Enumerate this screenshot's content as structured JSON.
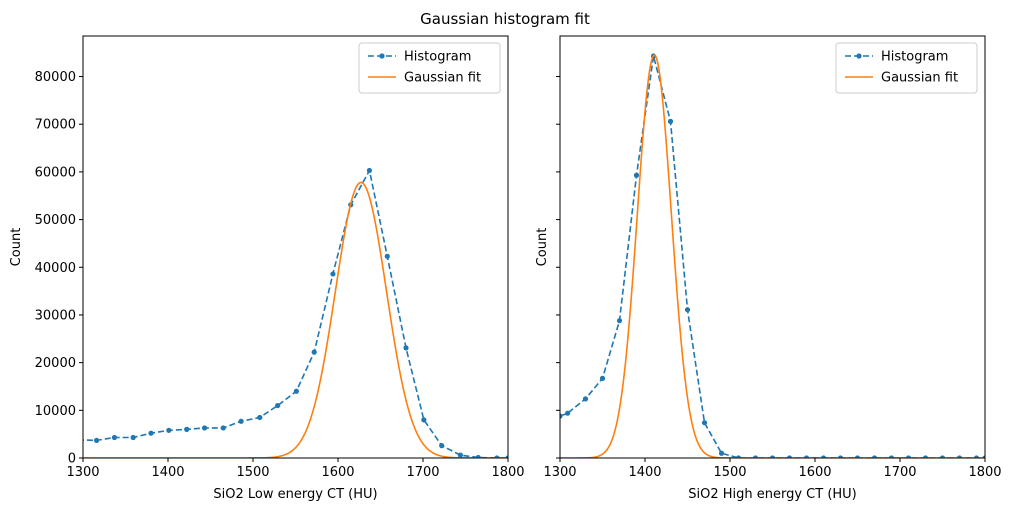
{
  "title": "Gaussian histogram fit",
  "colors": {
    "histogram": "#1f77b4",
    "fit": "#ff7f0e",
    "axes": "#000000"
  },
  "chart_data": [
    {
      "type": "line",
      "xlabel": "SiO2 Low energy CT (HU)",
      "ylabel": "Count",
      "xlim": [
        1300,
        1800
      ],
      "ylim": [
        0,
        88500
      ],
      "xticks": [
        1300,
        1400,
        1500,
        1600,
        1700,
        1800
      ],
      "yticks": [
        0,
        10000,
        20000,
        30000,
        40000,
        50000,
        60000,
        70000,
        80000
      ],
      "legend": {
        "position": "top-right",
        "entries": [
          "Histogram",
          "Gaussian fit"
        ]
      },
      "grid": false,
      "series": [
        {
          "name": "Histogram",
          "style": "dashed-dots",
          "x": [
            1294,
            1316,
            1337,
            1359,
            1380,
            1401,
            1422,
            1443,
            1465,
            1486,
            1508,
            1529,
            1551,
            1572,
            1594,
            1615,
            1637,
            1658,
            1680,
            1701,
            1722,
            1744,
            1765,
            1787,
            1800
          ],
          "y": [
            3800,
            3700,
            4300,
            4300,
            5200,
            5800,
            6000,
            6300,
            6300,
            7700,
            8500,
            11000,
            14000,
            22200,
            38600,
            53100,
            60300,
            42300,
            23100,
            8000,
            2600,
            600,
            100,
            0,
            0
          ]
        },
        {
          "name": "Gaussian fit",
          "style": "solid",
          "gaussian": {
            "amplitude": 57800,
            "mean": 1627,
            "sigma": 30
          },
          "x_range": [
            1300,
            1800
          ]
        }
      ]
    },
    {
      "type": "line",
      "xlabel": "SiO2 High energy CT (HU)",
      "ylabel": "Count",
      "xlim": [
        1300,
        1800
      ],
      "ylim": [
        0,
        88500
      ],
      "xticks": [
        1300,
        1400,
        1500,
        1600,
        1700,
        1800
      ],
      "yticks": [
        0,
        10000,
        20000,
        30000,
        40000,
        50000,
        60000,
        70000,
        80000
      ],
      "legend": {
        "position": "top-right",
        "entries": [
          "Histogram",
          "Gaussian fit"
        ]
      },
      "grid": false,
      "series": [
        {
          "name": "Histogram",
          "style": "dashed-dots",
          "x": [
            1300,
            1309,
            1330,
            1350,
            1370,
            1390,
            1410,
            1430,
            1450,
            1470,
            1490,
            1510,
            1530,
            1550,
            1570,
            1590,
            1610,
            1630,
            1650,
            1670,
            1690,
            1710,
            1730,
            1750,
            1770,
            1790,
            1800
          ],
          "y": [
            8800,
            9400,
            12400,
            16700,
            28800,
            59300,
            84300,
            70600,
            31100,
            7400,
            1000,
            0,
            0,
            0,
            0,
            0,
            0,
            0,
            0,
            0,
            0,
            0,
            0,
            0,
            0,
            0,
            0
          ]
        },
        {
          "name": "Gaussian fit",
          "style": "solid",
          "gaussian": {
            "amplitude": 84500,
            "mean": 1411,
            "sigma": 20
          },
          "x_range": [
            1300,
            1800
          ]
        }
      ]
    }
  ]
}
